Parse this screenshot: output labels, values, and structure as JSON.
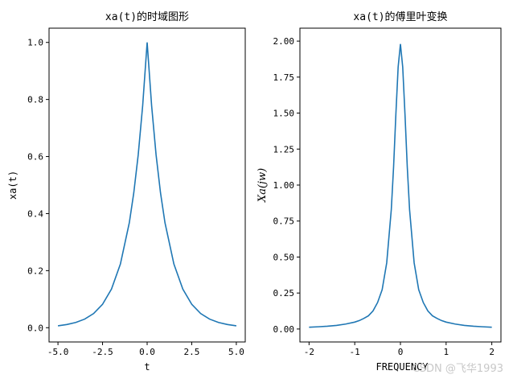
{
  "chart_data": [
    {
      "type": "line",
      "title": "xa(t)的时域图形",
      "xlabel": "t",
      "ylabel": "xa(t)",
      "xlim": [
        -5.5,
        5.5
      ],
      "ylim": [
        -0.05,
        1.05
      ],
      "xticks": [
        -5.0,
        -2.5,
        0.0,
        2.5,
        5.0
      ],
      "xtick_labels": [
        "-5.0",
        "-2.5",
        "0.0",
        "2.5",
        "5.0"
      ],
      "yticks": [
        0.0,
        0.2,
        0.4,
        0.6,
        0.8,
        1.0
      ],
      "ytick_labels": [
        "0.0",
        "0.2",
        "0.4",
        "0.6",
        "0.8",
        "1.0"
      ],
      "grid": false,
      "series": [
        {
          "color": "#1f77b4",
          "x": [
            -5.0,
            -4.5,
            -4.0,
            -3.5,
            -3.0,
            -2.5,
            -2.0,
            -1.5,
            -1.0,
            -0.75,
            -0.5,
            -0.25,
            0.0,
            0.25,
            0.5,
            0.75,
            1.0,
            1.5,
            2.0,
            2.5,
            3.0,
            3.5,
            4.0,
            4.5,
            5.0
          ],
          "y": [
            0.0067,
            0.0111,
            0.0183,
            0.0302,
            0.0498,
            0.0821,
            0.1353,
            0.2231,
            0.3679,
            0.4724,
            0.6065,
            0.7788,
            1.0,
            0.7788,
            0.6065,
            0.4724,
            0.3679,
            0.2231,
            0.1353,
            0.0821,
            0.0498,
            0.0302,
            0.0183,
            0.0111,
            0.0067
          ]
        }
      ]
    },
    {
      "type": "line",
      "title": "xa(t)的傅里叶变换",
      "xlabel": "FREQUENCY",
      "ylabel": "Xa(jw)",
      "xlim": [
        -2.2,
        2.2
      ],
      "ylim": [
        -0.09,
        2.09
      ],
      "xticks": [
        -2,
        -1,
        0,
        1,
        2
      ],
      "xtick_labels": [
        "-2",
        "-1",
        "0",
        "1",
        "2"
      ],
      "yticks": [
        0.0,
        0.25,
        0.5,
        0.75,
        1.0,
        1.25,
        1.5,
        1.75,
        2.0
      ],
      "ytick_labels": [
        "0.00",
        "0.25",
        "0.50",
        "0.75",
        "1.00",
        "1.25",
        "1.50",
        "1.75",
        "2.00"
      ],
      "grid": false,
      "series": [
        {
          "color": "#1f77b4",
          "x": [
            -2.0,
            -1.8,
            -1.6,
            -1.4,
            -1.2,
            -1.0,
            -0.9,
            -0.8,
            -0.7,
            -0.6,
            -0.5,
            -0.4,
            -0.3,
            -0.2,
            -0.15,
            -0.1,
            -0.05,
            0.0,
            0.05,
            0.1,
            0.15,
            0.2,
            0.3,
            0.4,
            0.5,
            0.6,
            0.7,
            0.8,
            0.9,
            1.0,
            1.2,
            1.4,
            1.6,
            1.8,
            2.0
          ],
          "y": [
            0.0125,
            0.0155,
            0.0194,
            0.0249,
            0.0345,
            0.048,
            0.0585,
            0.074,
            0.092,
            0.126,
            0.184,
            0.273,
            0.46,
            0.83,
            1.125,
            1.49,
            1.82,
            1.98,
            1.82,
            1.49,
            1.125,
            0.83,
            0.46,
            0.273,
            0.184,
            0.126,
            0.092,
            0.074,
            0.0585,
            0.048,
            0.0345,
            0.0249,
            0.0194,
            0.0155,
            0.0125
          ]
        }
      ]
    }
  ],
  "watermark": "CSDN @飞华1993"
}
